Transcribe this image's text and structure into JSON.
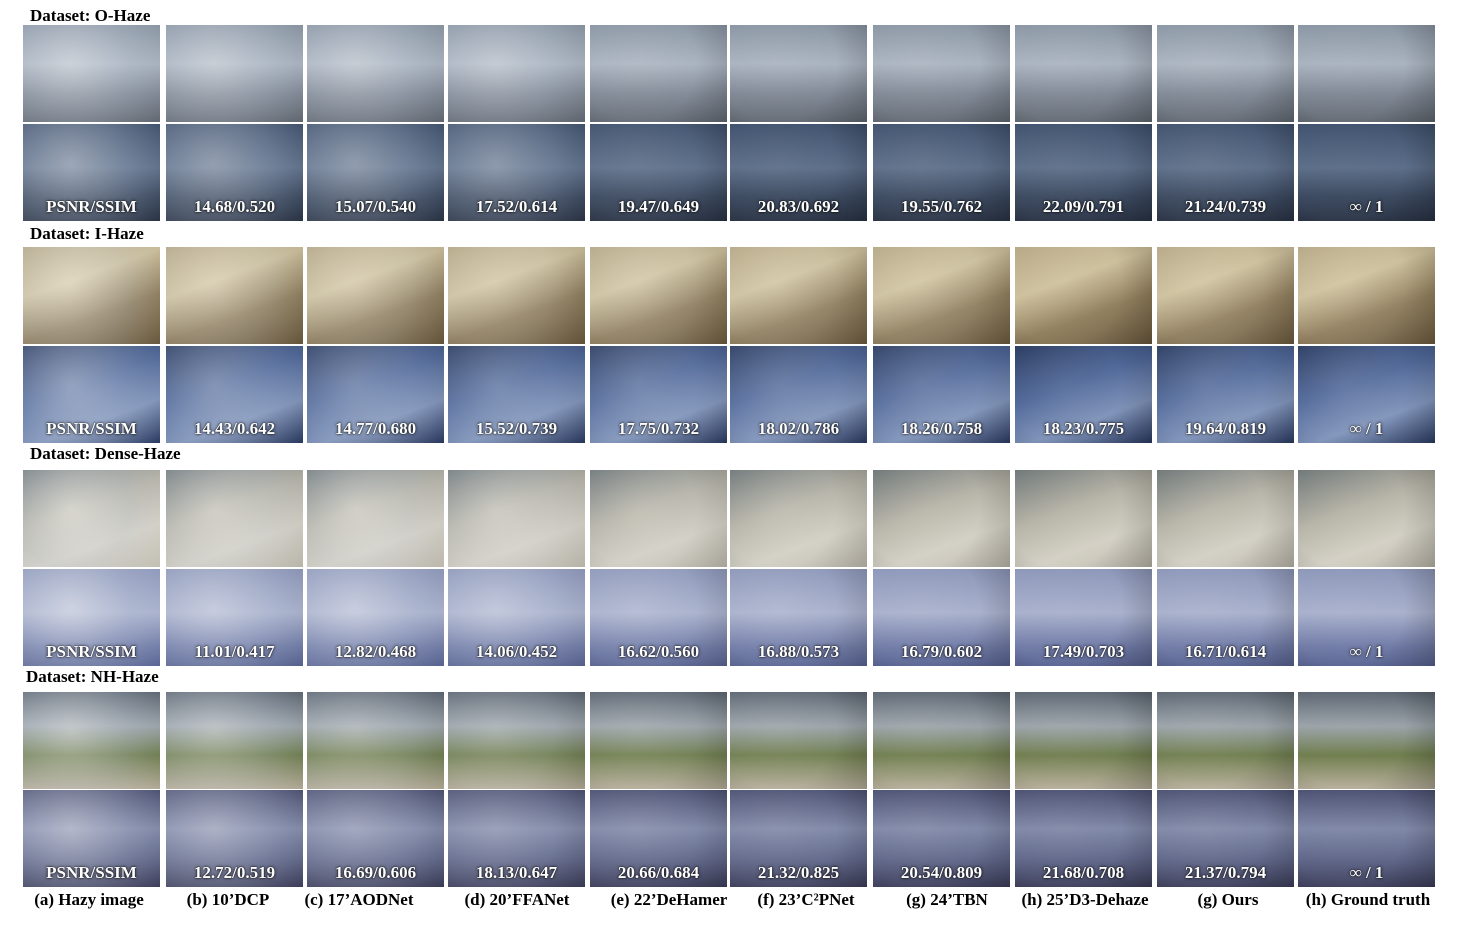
{
  "datasets": [
    {
      "label": "Dataset: O-Haze",
      "row1_class": "ohaze1",
      "row2_class": "ohaze2",
      "metrics": [
        "PSNR/SSIM",
        "14.68/0.520",
        "15.07/0.540",
        "17.52/0.614",
        "19.47/0.649",
        "20.83/0.692",
        "19.55/0.762",
        "22.09/0.791",
        "21.24/0.739",
        "∞ / 1"
      ],
      "clarity": [
        0.1,
        0.2,
        0.25,
        0.3,
        0.75,
        0.85,
        0.8,
        0.85,
        0.8,
        0.9
      ]
    },
    {
      "label": "Dataset: I-Haze",
      "row1_class": "ihaze1",
      "row2_class": "ihaze2",
      "metrics": [
        "PSNR/SSIM",
        "14.43/0.642",
        "14.77/0.680",
        "15.52/0.739",
        "17.75/0.732",
        "18.02/0.786",
        "18.26/0.758",
        "18.23/0.775",
        "19.64/0.819",
        "∞ / 1"
      ],
      "clarity": [
        0.1,
        0.3,
        0.35,
        0.45,
        0.5,
        0.55,
        0.6,
        0.8,
        0.65,
        0.7
      ]
    },
    {
      "label": "Dataset: Dense-Haze",
      "row1_class": "dhaze1",
      "row2_class": "dhaze2",
      "metrics": [
        "PSNR/SSIM",
        "11.01/0.417",
        "12.82/0.468",
        "14.06/0.452",
        "16.62/0.560",
        "16.88/0.573",
        "16.79/0.602",
        "17.49/0.703",
        "16.71/0.614",
        "∞ / 1"
      ],
      "clarity": [
        0.0,
        0.2,
        0.15,
        0.3,
        0.6,
        0.7,
        0.85,
        0.9,
        0.85,
        0.9
      ]
    },
    {
      "label": "Dataset: NH-Haze",
      "row1_class": "nhaze1",
      "row2_class": "nhaze2",
      "metrics": [
        "PSNR/SSIM",
        "12.72/0.519",
        "16.69/0.606",
        "18.13/0.647",
        "20.66/0.684",
        "21.32/0.825",
        "20.54/0.809",
        "21.68/0.708",
        "21.37/0.794",
        "∞ / 1"
      ],
      "clarity": [
        0.1,
        0.2,
        0.35,
        0.5,
        0.7,
        0.75,
        0.8,
        0.85,
        0.8,
        0.9
      ]
    }
  ],
  "captions": [
    "(a) Hazy image",
    "(b) 10’DCP",
    "(c) 17’AODNet",
    "(d) 20’FFANet",
    "(e) 22’DeHamer",
    "(f) 23’C²PNet",
    "(g) 24’TBN",
    "(h) 25’D3-Dehaze",
    "(g) Ours",
    "(h) Ground truth"
  ]
}
